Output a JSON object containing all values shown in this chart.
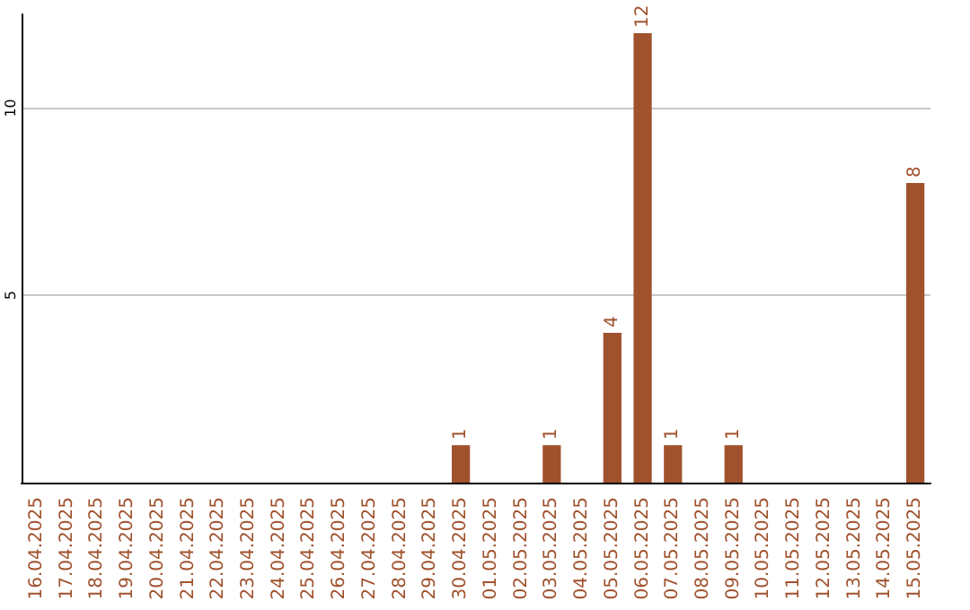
{
  "chart_data": {
    "type": "bar",
    "categories": [
      "16.04.2025",
      "17.04.2025",
      "18.04.2025",
      "19.04.2025",
      "20.04.2025",
      "21.04.2025",
      "22.04.2025",
      "23.04.2025",
      "24.04.2025",
      "25.04.2025",
      "26.04.2025",
      "27.04.2025",
      "28.04.2025",
      "29.04.2025",
      "30.04.2025",
      "01.05.2025",
      "02.05.2025",
      "03.05.2025",
      "04.05.2025",
      "05.05.2025",
      "06.05.2025",
      "07.05.2025",
      "08.05.2025",
      "09.05.2025",
      "10.05.2025",
      "11.05.2025",
      "12.05.2025",
      "13.05.2025",
      "14.05.2025",
      "15.05.2025"
    ],
    "values": [
      0,
      0,
      0,
      0,
      0,
      0,
      0,
      0,
      0,
      0,
      0,
      0,
      0,
      0,
      1,
      0,
      0,
      1,
      0,
      4,
      12,
      1,
      0,
      1,
      0,
      0,
      0,
      0,
      0,
      8
    ],
    "value_labels": [
      null,
      null,
      null,
      null,
      null,
      null,
      null,
      null,
      null,
      null,
      null,
      null,
      null,
      null,
      "1",
      null,
      null,
      "1",
      null,
      "4",
      "12",
      "1",
      null,
      "1",
      null,
      null,
      null,
      null,
      null,
      "8"
    ],
    "color": "#a0522d",
    "ylim": [
      0,
      12.5
    ],
    "yticks": [
      5,
      10
    ],
    "grid": "y"
  }
}
